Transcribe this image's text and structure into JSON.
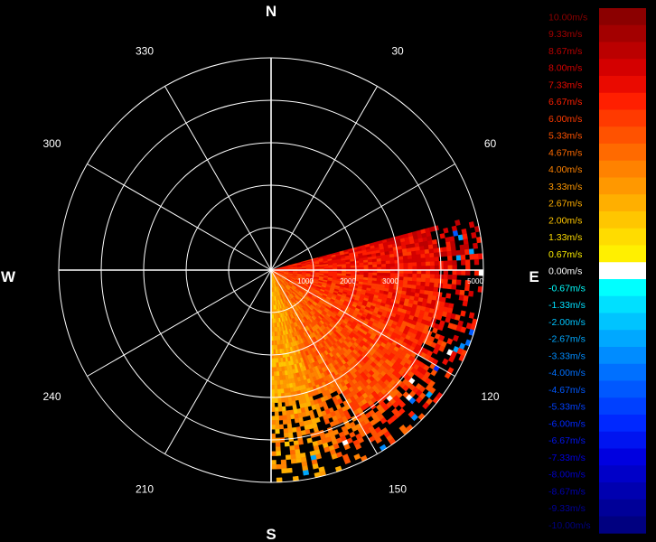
{
  "chart_data": {
    "type": "heatmap",
    "subtype": "polar-ppi-radial-velocity",
    "cardinal_labels": {
      "north": "N",
      "east": "E",
      "south": "S",
      "west": "W"
    },
    "angle_labels": [
      "30",
      "60",
      "120",
      "150",
      "210",
      "240",
      "300",
      "330"
    ],
    "angle_values": [
      30,
      60,
      120,
      150,
      210,
      240,
      300,
      330
    ],
    "range_labels": [
      "1000",
      "2000",
      "3000",
      "5000"
    ],
    "range_values": [
      1000,
      2000,
      3000,
      5000
    ],
    "range_max": 5000,
    "grid": true,
    "radial_spokes_every_deg": 30,
    "rings": 5,
    "sector": {
      "azimuth_start_deg": 75,
      "azimuth_end_deg": 180
    },
    "data_description": "Radial velocity observed in sector from ~75 to 180 degrees; values mostly between 3 and 8 m/s, with a few negative returns near the outer edge.",
    "velocity_range": [
      -10.0,
      10.0
    ],
    "legend_position": "right",
    "colorbar": [
      {
        "label": "10.00m/s",
        "value": 10.0,
        "color": "#8b0000",
        "text_color": "#8b0000"
      },
      {
        "label": "9.33m/s",
        "value": 9.33,
        "color": "#a30000",
        "text_color": "#a30000"
      },
      {
        "label": "8.67m/s",
        "value": 8.67,
        "color": "#bb0000",
        "text_color": "#bb0000"
      },
      {
        "label": "8.00m/s",
        "value": 8.0,
        "color": "#d40000",
        "text_color": "#d40000"
      },
      {
        "label": "7.33m/s",
        "value": 7.33,
        "color": "#ea0a00",
        "text_color": "#ea0a00"
      },
      {
        "label": "6.67m/s",
        "value": 6.67,
        "color": "#ff1f00",
        "text_color": "#ff1f00"
      },
      {
        "label": "6.00m/s",
        "value": 6.0,
        "color": "#ff3a00",
        "text_color": "#ff3a00"
      },
      {
        "label": "5.33m/s",
        "value": 5.33,
        "color": "#ff5200",
        "text_color": "#ff5200"
      },
      {
        "label": "4.67m/s",
        "value": 4.67,
        "color": "#ff6a00",
        "text_color": "#ff6a00"
      },
      {
        "label": "4.00m/s",
        "value": 4.0,
        "color": "#ff8200",
        "text_color": "#ff8200"
      },
      {
        "label": "3.33m/s",
        "value": 3.33,
        "color": "#ff9800",
        "text_color": "#ff9800"
      },
      {
        "label": "2.67m/s",
        "value": 2.67,
        "color": "#ffaf00",
        "text_color": "#ffaf00"
      },
      {
        "label": "2.00m/s",
        "value": 2.0,
        "color": "#ffc600",
        "text_color": "#ffc600"
      },
      {
        "label": "1.33m/s",
        "value": 1.33,
        "color": "#ffdc00",
        "text_color": "#ffdc00"
      },
      {
        "label": "0.67m/s",
        "value": 0.67,
        "color": "#fff000",
        "text_color": "#fff000"
      },
      {
        "label": "0.00m/s",
        "value": 0.0,
        "color": "#ffffff",
        "text_color": "#ffffff"
      },
      {
        "label": "-0.67m/s",
        "value": -0.67,
        "color": "#00ffff",
        "text_color": "#00ffff"
      },
      {
        "label": "-1.33m/s",
        "value": -1.33,
        "color": "#00e0ff",
        "text_color": "#00e0ff"
      },
      {
        "label": "-2.00m/s",
        "value": -2.0,
        "color": "#00c4ff",
        "text_color": "#00c4ff"
      },
      {
        "label": "-2.67m/s",
        "value": -2.67,
        "color": "#00a8ff",
        "text_color": "#00a8ff"
      },
      {
        "label": "-3.33m/s",
        "value": -3.33,
        "color": "#008cff",
        "text_color": "#008cff"
      },
      {
        "label": "-4.00m/s",
        "value": -4.0,
        "color": "#0070ff",
        "text_color": "#0070ff"
      },
      {
        "label": "-4.67m/s",
        "value": -4.67,
        "color": "#0058ff",
        "text_color": "#0058ff"
      },
      {
        "label": "-5.33m/s",
        "value": -5.33,
        "color": "#0040ff",
        "text_color": "#0040ff"
      },
      {
        "label": "-6.00m/s",
        "value": -6.0,
        "color": "#0028ff",
        "text_color": "#0028ff"
      },
      {
        "label": "-6.67m/s",
        "value": -6.67,
        "color": "#0014f0",
        "text_color": "#0014f0"
      },
      {
        "label": "-7.33m/s",
        "value": -7.33,
        "color": "#0000e0",
        "text_color": "#0000e0"
      },
      {
        "label": "-8.00m/s",
        "value": -8.0,
        "color": "#0000c8",
        "text_color": "#0000c8"
      },
      {
        "label": "-8.67m/s",
        "value": -8.67,
        "color": "#0000b0",
        "text_color": "#0000b0"
      },
      {
        "label": "-9.33m/s",
        "value": -9.33,
        "color": "#000098",
        "text_color": "#000098"
      },
      {
        "label": "-10.00m/s",
        "value": -10.0,
        "color": "#000080",
        "text_color": "#000080"
      }
    ]
  }
}
